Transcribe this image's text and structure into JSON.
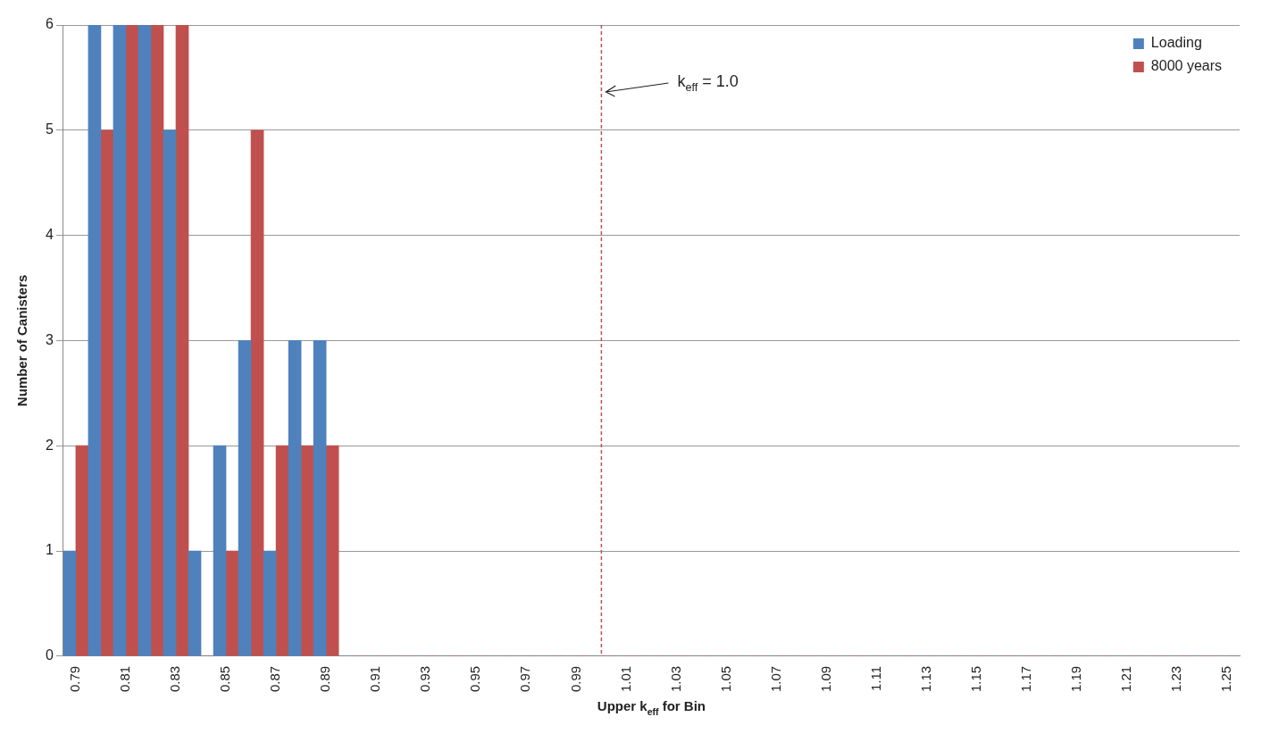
{
  "chart_data": {
    "type": "bar",
    "xlabel": "Upper k$_{eff}$ for Bin",
    "ylabel": "Number of Canisters",
    "x": [
      0.79,
      0.8,
      0.81,
      0.82,
      0.83,
      0.84,
      0.85,
      0.86,
      0.87,
      0.88,
      0.89,
      0.9,
      0.91,
      0.92,
      0.93,
      0.94,
      0.95,
      0.96,
      0.97,
      0.98,
      0.99,
      1.0,
      1.01,
      1.02,
      1.03,
      1.04,
      1.05,
      1.06,
      1.07,
      1.08,
      1.09,
      1.1,
      1.11,
      1.12,
      1.13,
      1.14,
      1.15,
      1.16,
      1.17,
      1.18,
      1.19,
      1.2,
      1.21,
      1.22,
      1.23,
      1.24,
      1.25
    ],
    "series": [
      {
        "name": "Loading",
        "color": "#4f81bd",
        "values": [
          1,
          6,
          6,
          6,
          5,
          1,
          2,
          3,
          1,
          3,
          3,
          0,
          0,
          0,
          0,
          0,
          0,
          0,
          0,
          0,
          0,
          0,
          0,
          0,
          0,
          0,
          0,
          0,
          0,
          0,
          0,
          0,
          0,
          0,
          0,
          0,
          0,
          0,
          0,
          0,
          0,
          0,
          0,
          0,
          0,
          0,
          0
        ]
      },
      {
        "name": "8000 years",
        "color": "#c0504d",
        "values": [
          2,
          5,
          6,
          6,
          6,
          0,
          1,
          5,
          2,
          2,
          2,
          0,
          0,
          0,
          0,
          0,
          0,
          0,
          0,
          0,
          0,
          0,
          0,
          0,
          0,
          0,
          0,
          0,
          0,
          0,
          0,
          0,
          0,
          0,
          0,
          0,
          0,
          0,
          0,
          0,
          0,
          0,
          0,
          0,
          0,
          0,
          0
        ]
      }
    ],
    "xlim": [
      0.785,
      1.255
    ],
    "xticks": [
      0.79,
      0.81,
      0.83,
      0.85,
      0.87,
      0.89,
      0.91,
      0.93,
      0.95,
      0.97,
      0.99,
      1.01,
      1.03,
      1.05,
      1.07,
      1.09,
      1.11,
      1.13,
      1.15,
      1.17,
      1.19,
      1.21,
      1.23,
      1.25
    ],
    "ylim": [
      0,
      6
    ],
    "yticks": [
      0,
      1,
      2,
      3,
      4,
      5,
      6
    ],
    "ref_lines": [
      {
        "axis": "x",
        "value": 1.0,
        "label": "k$_{eff}$ = 1.0",
        "color": "#c0504d",
        "line_style": "dashed"
      }
    ],
    "grid": "y",
    "legend": "top right"
  }
}
